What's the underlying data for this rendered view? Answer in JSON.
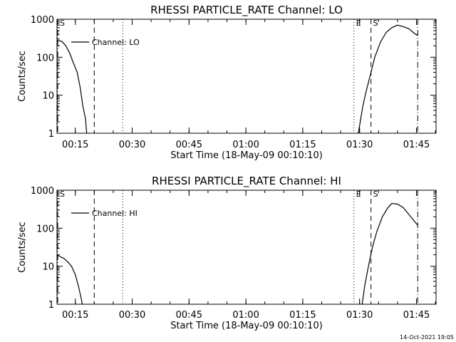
{
  "footer": {
    "timestamp": "14-Oct-2021 19:05"
  },
  "chart_data": [
    {
      "type": "line",
      "title": "RHESSI PARTICLE_RATE Channel: LO",
      "xlabel": "Start Time (18-May-09 00:10:10)",
      "ylabel": "Counts/sec",
      "xlim_minutes_after_start": [
        0,
        100
      ],
      "ylim": [
        1,
        1000
      ],
      "y_scale": "log",
      "x_ticks": [
        "00:15",
        "00:30",
        "00:45",
        "01:00",
        "01:15",
        "01:30",
        "01:45"
      ],
      "y_ticks": [
        "1",
        "10",
        "100",
        "1000"
      ],
      "legend": {
        "label": "Channel: LO",
        "placement": "top-left"
      },
      "markers": [
        {
          "label": "S",
          "style": "dash-dot",
          "time": "00:10:10"
        },
        {
          "style": "dashed",
          "time": "00:20:00"
        },
        {
          "style": "dotted",
          "time": "00:27:30"
        },
        {
          "label": "E",
          "style": "dotted",
          "time": "01:28:30"
        },
        {
          "label": "S",
          "style": "dashed",
          "time": "01:33:00"
        },
        {
          "style": "dash-dot",
          "time": "01:45:20"
        }
      ],
      "series": [
        {
          "name": "Channel: LO",
          "points": [
            [
              "00:10:10",
              280
            ],
            [
              "00:11:30",
              260
            ],
            [
              "00:12:30",
              200
            ],
            [
              "00:13:30",
              130
            ],
            [
              "00:14:30",
              70
            ],
            [
              "00:15:30",
              40
            ],
            [
              "00:16:20",
              15
            ],
            [
              "00:17:00",
              5
            ],
            [
              "00:17:40",
              2.5
            ],
            [
              "00:18:00",
              1
            ],
            [
              "01:29:40",
              1
            ],
            [
              "01:30:10",
              2
            ],
            [
              "01:30:50",
              5
            ],
            [
              "01:31:40",
              12
            ],
            [
              "01:33:00",
              40
            ],
            [
              "01:34:00",
              100
            ],
            [
              "01:35:30",
              250
            ],
            [
              "01:37:00",
              450
            ],
            [
              "01:38:30",
              600
            ],
            [
              "01:40:00",
              700
            ],
            [
              "01:41:30",
              640
            ],
            [
              "01:43:00",
              560
            ],
            [
              "01:44:30",
              420
            ],
            [
              "01:45:10",
              380
            ],
            [
              "01:45:20",
              420
            ]
          ]
        }
      ]
    },
    {
      "type": "line",
      "title": "RHESSI PARTICLE_RATE Channel: HI",
      "xlabel": "Start Time (18-May-09 00:10:10)",
      "ylabel": "Counts/sec",
      "xlim_minutes_after_start": [
        0,
        100
      ],
      "ylim": [
        1,
        1000
      ],
      "y_scale": "log",
      "x_ticks": [
        "00:15",
        "00:30",
        "00:45",
        "01:00",
        "01:15",
        "01:30",
        "01:45"
      ],
      "y_ticks": [
        "1",
        "10",
        "100",
        "1000"
      ],
      "legend": {
        "label": "Channel: HI",
        "placement": "top-left"
      },
      "markers": [
        {
          "label": "S",
          "style": "dash-dot",
          "time": "00:10:10"
        },
        {
          "style": "dashed",
          "time": "00:20:00"
        },
        {
          "style": "dotted",
          "time": "00:27:30"
        },
        {
          "label": "E",
          "style": "dotted",
          "time": "01:28:30"
        },
        {
          "label": "S",
          "style": "dashed",
          "time": "01:33:00"
        },
        {
          "style": "dash-dot",
          "time": "01:45:20"
        }
      ],
      "series": [
        {
          "name": "Channel: HI",
          "points": [
            [
              "00:10:10",
              20
            ],
            [
              "00:11:00",
              18
            ],
            [
              "00:12:00",
              16
            ],
            [
              "00:13:00",
              13
            ],
            [
              "00:14:00",
              10
            ],
            [
              "00:15:00",
              6
            ],
            [
              "00:15:50",
              3
            ],
            [
              "00:16:30",
              1.5
            ],
            [
              "00:16:50",
              1
            ],
            [
              "01:30:40",
              1
            ],
            [
              "01:31:20",
              3
            ],
            [
              "01:32:20",
              10
            ],
            [
              "01:33:20",
              30
            ],
            [
              "01:34:30",
              80
            ],
            [
              "01:36:00",
              200
            ],
            [
              "01:37:30",
              350
            ],
            [
              "01:38:30",
              450
            ],
            [
              "01:40:00",
              430
            ],
            [
              "01:41:30",
              350
            ],
            [
              "01:43:00",
              230
            ],
            [
              "01:44:30",
              150
            ],
            [
              "01:45:20",
              120
            ]
          ]
        }
      ]
    }
  ]
}
